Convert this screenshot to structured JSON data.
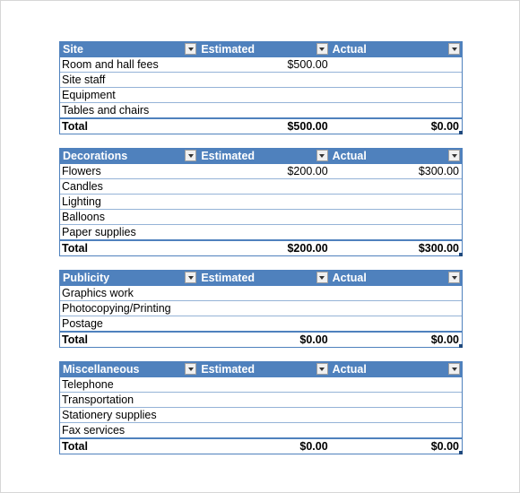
{
  "tables": [
    {
      "header": {
        "category": "Site",
        "estimated": "Estimated",
        "actual": "Actual"
      },
      "rows": [
        {
          "label": "Room and hall fees",
          "estimated": "$500.00",
          "actual": ""
        },
        {
          "label": "Site staff",
          "estimated": "",
          "actual": ""
        },
        {
          "label": "Equipment",
          "estimated": "",
          "actual": ""
        },
        {
          "label": "Tables and chairs",
          "estimated": "",
          "actual": ""
        }
      ],
      "total": {
        "label": "Total",
        "estimated": "$500.00",
        "actual": "$0.00"
      }
    },
    {
      "header": {
        "category": "Decorations",
        "estimated": "Estimated",
        "actual": "Actual"
      },
      "rows": [
        {
          "label": "Flowers",
          "estimated": "$200.00",
          "actual": "$300.00"
        },
        {
          "label": "Candles",
          "estimated": "",
          "actual": ""
        },
        {
          "label": "Lighting",
          "estimated": "",
          "actual": ""
        },
        {
          "label": "Balloons",
          "estimated": "",
          "actual": ""
        },
        {
          "label": "Paper supplies",
          "estimated": "",
          "actual": ""
        }
      ],
      "total": {
        "label": "Total",
        "estimated": "$200.00",
        "actual": "$300.00"
      }
    },
    {
      "header": {
        "category": "Publicity",
        "estimated": "Estimated",
        "actual": "Actual"
      },
      "rows": [
        {
          "label": "Graphics work",
          "estimated": "",
          "actual": ""
        },
        {
          "label": "Photocopying/Printing",
          "estimated": "",
          "actual": ""
        },
        {
          "label": "Postage",
          "estimated": "",
          "actual": ""
        }
      ],
      "total": {
        "label": "Total",
        "estimated": "$0.00",
        "actual": "$0.00"
      }
    },
    {
      "header": {
        "category": "Miscellaneous",
        "estimated": "Estimated",
        "actual": "Actual"
      },
      "rows": [
        {
          "label": "Telephone",
          "estimated": "",
          "actual": ""
        },
        {
          "label": "Transportation",
          "estimated": "",
          "actual": ""
        },
        {
          "label": "Stationery supplies",
          "estimated": "",
          "actual": ""
        },
        {
          "label": "Fax services",
          "estimated": "",
          "actual": ""
        }
      ],
      "total": {
        "label": "Total",
        "estimated": "$0.00",
        "actual": "$0.00"
      }
    }
  ],
  "colors": {
    "header_bg": "#4f81bd",
    "row_border": "#95b3d7"
  },
  "icons": {
    "filter_dropdown": "chevron-down-icon"
  }
}
